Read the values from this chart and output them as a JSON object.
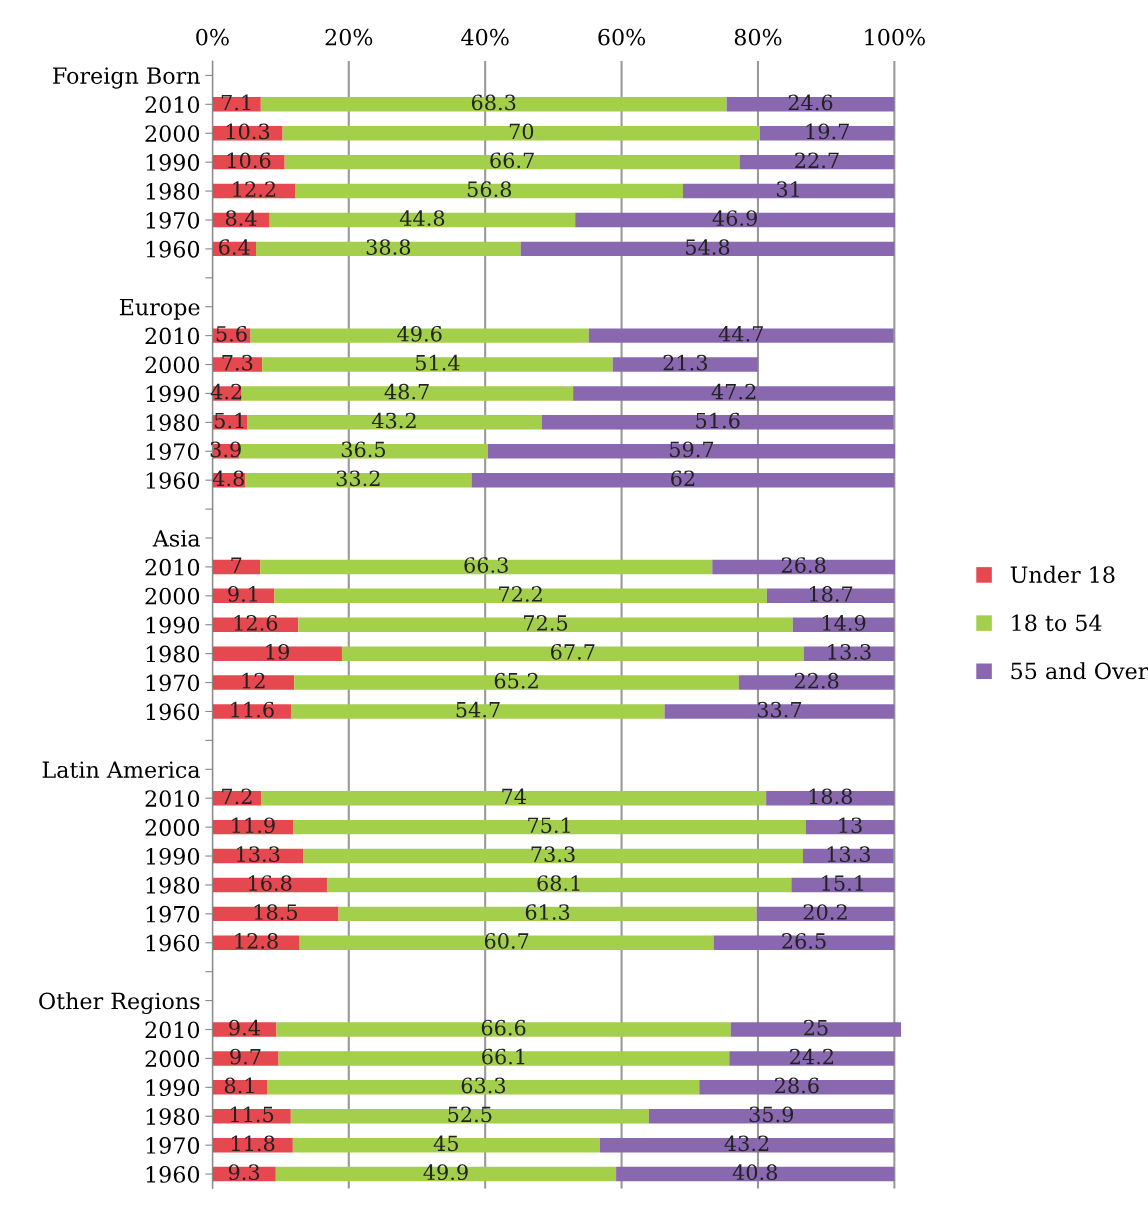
{
  "chart_data": {
    "type": "bar",
    "orientation": "horizontal",
    "stacked": true,
    "data_labels": true,
    "grid": "x",
    "legend": "right",
    "categories": [
      "Foreign Born",
      "2010",
      "2000",
      "1990",
      "1980",
      "1970",
      "1960",
      null,
      "Europe",
      "2010",
      "2000",
      "1990",
      "1980",
      "1970",
      "1960",
      null,
      "Asia",
      "2010",
      "2000",
      "1990",
      "1980",
      "1970",
      "1960",
      null,
      "Latin America",
      "2010",
      "2000",
      "1990",
      "1980",
      "1970",
      "1960",
      null,
      "Other Regions",
      "2010",
      "2000",
      "1990",
      "1980",
      "1970",
      "1960"
    ],
    "series": [
      {
        "name": "Under 18",
        "color": "#e5484f",
        "values": [
          null,
          7.1,
          10.3,
          10.6,
          12.2,
          8.4,
          6.4,
          null,
          null,
          5.6,
          7.3,
          4.2,
          5.1,
          3.9,
          4.8,
          null,
          null,
          7,
          9.1,
          12.6,
          19,
          12,
          11.6,
          null,
          null,
          7.2,
          11.9,
          13.3,
          16.8,
          18.5,
          12.8,
          null,
          null,
          9.4,
          9.7,
          8.1,
          11.5,
          11.8,
          9.3
        ]
      },
      {
        "name": "18 to 54",
        "color": "#a3cf4a",
        "values": [
          null,
          68.3,
          70,
          66.7,
          56.8,
          44.8,
          38.8,
          null,
          null,
          49.6,
          51.4,
          48.7,
          43.2,
          36.5,
          33.2,
          null,
          null,
          66.3,
          72.2,
          72.5,
          67.7,
          65.2,
          54.7,
          null,
          null,
          74,
          75.1,
          73.3,
          68.1,
          61.3,
          60.7,
          null,
          null,
          66.6,
          66.1,
          63.3,
          52.5,
          45,
          49.9
        ]
      },
      {
        "name": "55 and Over",
        "color": "#8a68b0",
        "values": [
          null,
          24.6,
          19.7,
          22.7,
          31,
          46.9,
          54.8,
          null,
          null,
          44.7,
          21.3,
          47.2,
          51.6,
          59.7,
          62,
          null,
          null,
          26.8,
          18.7,
          14.9,
          13.3,
          22.8,
          33.7,
          null,
          null,
          18.8,
          13,
          13.3,
          15.1,
          20.2,
          26.5,
          null,
          null,
          25,
          24.2,
          28.6,
          35.9,
          43.2,
          40.8
        ]
      }
    ],
    "xlim": [
      0,
      101
    ],
    "xticks": [
      {
        "value": 0,
        "label": "0%"
      },
      {
        "value": 20,
        "label": "20%"
      },
      {
        "value": 40,
        "label": "40%"
      },
      {
        "value": 60,
        "label": "60%"
      },
      {
        "value": 80,
        "label": "80%"
      },
      {
        "value": 100,
        "label": "100%"
      }
    ]
  }
}
